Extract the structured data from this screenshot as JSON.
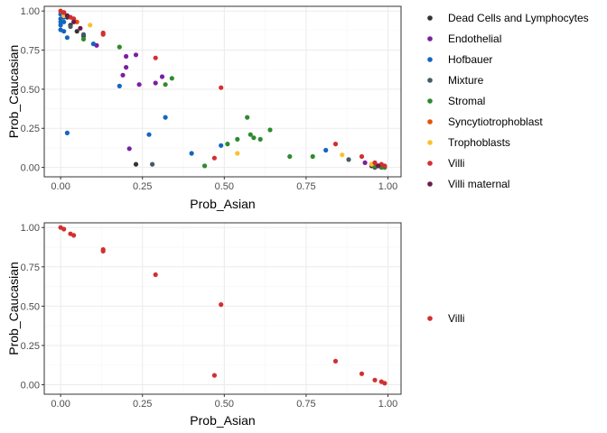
{
  "chart_data": [
    {
      "type": "scatter",
      "xlabel": "Prob_Asian",
      "ylabel": "Prob_Caucasian",
      "xlim": [
        -0.05,
        1.04
      ],
      "ylim": [
        -0.06,
        1.03
      ],
      "xticks": [
        "0.00",
        "0.25",
        "0.50",
        "0.75",
        "1.00"
      ],
      "yticks": [
        "0.00",
        "0.25",
        "0.50",
        "0.75",
        "1.00"
      ],
      "xtick_values": [
        0,
        0.25,
        0.5,
        0.75,
        1.0
      ],
      "ytick_values": [
        0,
        0.25,
        0.5,
        0.75,
        1.0
      ],
      "grid": true,
      "legend_position": "right",
      "series": [
        {
          "name": "Dead Cells and Lymphocytes",
          "color": "#333333",
          "points": [
            [
              0.01,
              0.99
            ],
            [
              0.02,
              0.96
            ],
            [
              0.03,
              0.91
            ],
            [
              0.05,
              0.87
            ],
            [
              0.07,
              0.84
            ],
            [
              0.23,
              0.02
            ],
            [
              0.95,
              0.01
            ],
            [
              0.96,
              0.02
            ]
          ]
        },
        {
          "name": "Endothelial",
          "color": "#7B1FA2",
          "points": [
            [
              0.11,
              0.78
            ],
            [
              0.2,
              0.71
            ],
            [
              0.2,
              0.64
            ],
            [
              0.19,
              0.59
            ],
            [
              0.23,
              0.72
            ],
            [
              0.24,
              0.53
            ],
            [
              0.29,
              0.54
            ],
            [
              0.31,
              0.58
            ],
            [
              0.21,
              0.12
            ],
            [
              0.93,
              0.03
            ],
            [
              0.96,
              0.01
            ],
            [
              0.97,
              0.01
            ]
          ]
        },
        {
          "name": "Hofbauer",
          "color": "#1565C0",
          "points": [
            [
              0.0,
              0.98
            ],
            [
              0.0,
              0.95
            ],
            [
              0.0,
              0.93
            ],
            [
              0.0,
              0.91
            ],
            [
              0.0,
              0.88
            ],
            [
              0.01,
              0.87
            ],
            [
              0.01,
              0.96
            ],
            [
              0.01,
              0.93
            ],
            [
              0.02,
              0.83
            ],
            [
              0.02,
              0.22
            ],
            [
              0.1,
              0.79
            ],
            [
              0.18,
              0.52
            ],
            [
              0.27,
              0.21
            ],
            [
              0.32,
              0.32
            ],
            [
              0.4,
              0.09
            ],
            [
              0.49,
              0.14
            ],
            [
              0.81,
              0.11
            ],
            [
              0.97,
              0.01
            ]
          ]
        },
        {
          "name": "Mixture",
          "color": "#455A64",
          "points": [
            [
              0.03,
              0.9
            ],
            [
              0.07,
              0.85
            ],
            [
              0.28,
              0.02
            ],
            [
              0.88,
              0.05
            ],
            [
              0.96,
              0.0
            ]
          ]
        },
        {
          "name": "Stromal",
          "color": "#2E8B2E",
          "points": [
            [
              0.07,
              0.82
            ],
            [
              0.18,
              0.77
            ],
            [
              0.32,
              0.53
            ],
            [
              0.34,
              0.57
            ],
            [
              0.44,
              0.01
            ],
            [
              0.51,
              0.15
            ],
            [
              0.54,
              0.18
            ],
            [
              0.57,
              0.32
            ],
            [
              0.58,
              0.21
            ],
            [
              0.59,
              0.19
            ],
            [
              0.61,
              0.18
            ],
            [
              0.64,
              0.24
            ],
            [
              0.7,
              0.07
            ],
            [
              0.77,
              0.07
            ],
            [
              0.96,
              0.01
            ],
            [
              0.98,
              0.0
            ],
            [
              0.99,
              0.0
            ]
          ]
        },
        {
          "name": "Syncytiotrophoblast",
          "color": "#E65100",
          "points": [
            [
              0.01,
              0.99
            ],
            [
              0.02,
              0.97
            ],
            [
              0.04,
              0.95
            ],
            [
              0.05,
              0.93
            ],
            [
              0.95,
              0.02
            ],
            [
              0.97,
              0.01
            ]
          ]
        },
        {
          "name": "Trophoblasts",
          "color": "#FBC02D",
          "points": [
            [
              0.0,
              1.0
            ],
            [
              0.01,
              0.97
            ],
            [
              0.09,
              0.91
            ],
            [
              0.54,
              0.09
            ],
            [
              0.86,
              0.08
            ],
            [
              0.95,
              0.02
            ]
          ]
        },
        {
          "name": "Villi",
          "color": "#D32F2F",
          "points": [
            [
              0.0,
              1.0
            ],
            [
              0.01,
              0.99
            ],
            [
              0.03,
              0.96
            ],
            [
              0.04,
              0.95
            ],
            [
              0.13,
              0.86
            ],
            [
              0.13,
              0.85
            ],
            [
              0.29,
              0.7
            ],
            [
              0.47,
              0.06
            ],
            [
              0.49,
              0.51
            ],
            [
              0.84,
              0.15
            ],
            [
              0.92,
              0.07
            ],
            [
              0.96,
              0.03
            ],
            [
              0.98,
              0.02
            ],
            [
              0.99,
              0.01
            ]
          ]
        },
        {
          "name": "Villi maternal",
          "color": "#6A1B4D",
          "points": [
            [
              0.02,
              0.97
            ],
            [
              0.04,
              0.93
            ],
            [
              0.06,
              0.89
            ],
            [
              0.97,
              0.01
            ]
          ]
        }
      ]
    },
    {
      "type": "scatter",
      "xlabel": "Prob_Asian",
      "ylabel": "Prob_Caucasian",
      "xlim": [
        -0.05,
        1.04
      ],
      "ylim": [
        -0.06,
        1.03
      ],
      "xticks": [
        "0.00",
        "0.25",
        "0.50",
        "0.75",
        "1.00"
      ],
      "yticks": [
        "0.00",
        "0.25",
        "0.50",
        "0.75",
        "1.00"
      ],
      "xtick_values": [
        0,
        0.25,
        0.5,
        0.75,
        1.0
      ],
      "ytick_values": [
        0,
        0.25,
        0.5,
        0.75,
        1.0
      ],
      "grid": true,
      "legend_position": "right",
      "series": [
        {
          "name": "Villi",
          "color": "#D32F2F",
          "points": [
            [
              0.0,
              1.0
            ],
            [
              0.01,
              0.99
            ],
            [
              0.03,
              0.96
            ],
            [
              0.04,
              0.95
            ],
            [
              0.13,
              0.86
            ],
            [
              0.13,
              0.85
            ],
            [
              0.29,
              0.7
            ],
            [
              0.47,
              0.06
            ],
            [
              0.49,
              0.51
            ],
            [
              0.84,
              0.15
            ],
            [
              0.92,
              0.07
            ],
            [
              0.96,
              0.03
            ],
            [
              0.98,
              0.02
            ],
            [
              0.99,
              0.01
            ]
          ]
        }
      ]
    }
  ]
}
